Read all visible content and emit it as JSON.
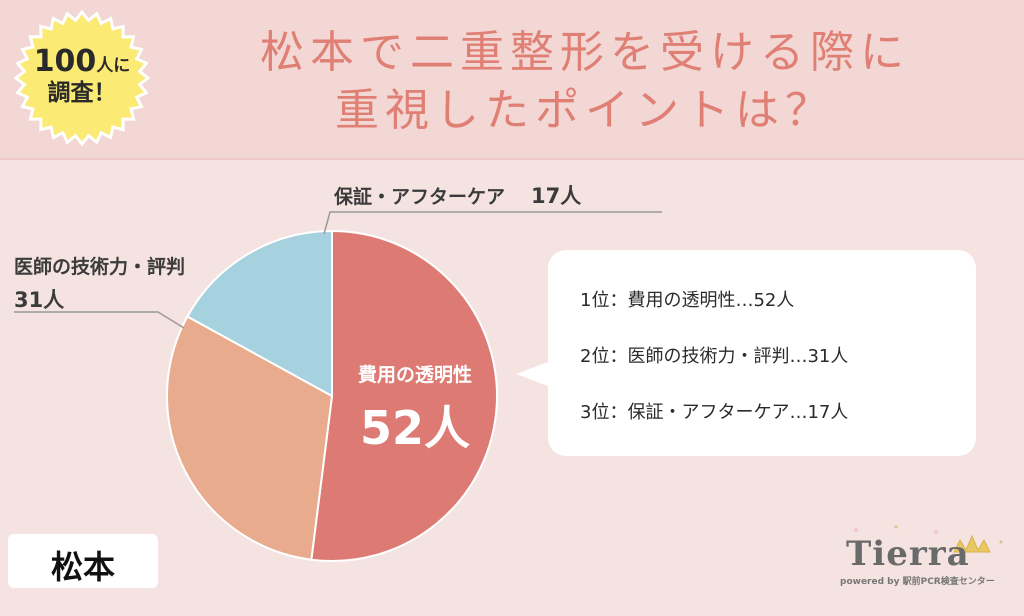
{
  "badge": {
    "number": "100",
    "small": "人に",
    "line2": "調査！"
  },
  "title": {
    "line1": "松本で二重整形を受ける際に",
    "line2": "重視したポイントは？"
  },
  "chart_data": {
    "type": "pie",
    "unit": "人",
    "slices": [
      {
        "label": "費用の透明性",
        "value": 52,
        "color": "#dc7a73"
      },
      {
        "label": "医師の技術力・評判",
        "value": 31,
        "color": "#e9ab8e"
      },
      {
        "label": "保証・アフターケア",
        "value": 17,
        "color": "#a6d1de"
      }
    ]
  },
  "labels": {
    "top_name": "保証・アフターケア",
    "top_count": "17人",
    "left_name": "医師の技術力・評判",
    "left_count": "31人",
    "inside_name": "費用の透明性",
    "inside_count": "52人"
  },
  "ranking": [
    "1位：費用の透明性…52人",
    "2位：医師の技術力・評判…31人",
    "3位：保証・アフターケア…17人"
  ],
  "city": "松本",
  "logo": {
    "name": "Tierra",
    "sub": "powered by 駅前PCR検査センター"
  }
}
